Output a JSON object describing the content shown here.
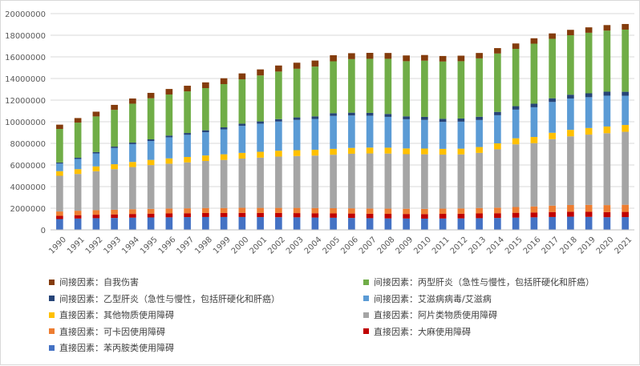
{
  "chart_data": {
    "type": "bar",
    "stacked": true,
    "title": "",
    "xlabel": "",
    "ylabel": "",
    "ylim": [
      0,
      20000000
    ],
    "y_ticks": [
      "0",
      "2000000",
      "4000000",
      "6000000",
      "8000000",
      "10000000",
      "12000000",
      "14000000",
      "16000000",
      "18000000",
      "20000000"
    ],
    "grid": true,
    "legend_position": "bottom",
    "categories": [
      "1990",
      "1991",
      "1992",
      "1993",
      "1994",
      "1995",
      "1996",
      "1997",
      "1998",
      "1999",
      "2000",
      "2001",
      "2002",
      "2003",
      "2004",
      "2005",
      "2006",
      "2007",
      "2008",
      "2009",
      "2010",
      "2011",
      "2012",
      "2013",
      "2014",
      "2015",
      "2016",
      "2017",
      "2018",
      "2019",
      "2020",
      "2021"
    ],
    "series": [
      {
        "name": "直接因素：苯丙胺类使用障碍",
        "color": "#4472c4",
        "values": [
          1000000,
          1050000,
          1080000,
          1100000,
          1130000,
          1150000,
          1160000,
          1180000,
          1190000,
          1190000,
          1190000,
          1180000,
          1170000,
          1160000,
          1140000,
          1120000,
          1100000,
          1080000,
          1060000,
          1050000,
          1040000,
          1050000,
          1060000,
          1080000,
          1100000,
          1130000,
          1160000,
          1190000,
          1220000,
          1200000,
          1170000,
          1180000
        ]
      },
      {
        "name": "直接因素：大麻使用障碍",
        "color": "#c00000",
        "values": [
          300000,
          310000,
          320000,
          330000,
          340000,
          350000,
          360000,
          360000,
          370000,
          370000,
          380000,
          380000,
          390000,
          390000,
          400000,
          400000,
          410000,
          410000,
          420000,
          420000,
          420000,
          430000,
          430000,
          440000,
          440000,
          450000,
          450000,
          460000,
          460000,
          470000,
          470000,
          480000
        ]
      },
      {
        "name": "直接因素：可卡因使用障碍",
        "color": "#ed7d31",
        "values": [
          400000,
          410000,
          420000,
          430000,
          440000,
          440000,
          450000,
          450000,
          460000,
          460000,
          470000,
          470000,
          470000,
          480000,
          480000,
          480000,
          480000,
          480000,
          480000,
          480000,
          480000,
          480000,
          490000,
          500000,
          510000,
          530000,
          560000,
          590000,
          620000,
          640000,
          650000,
          660000
        ]
      },
      {
        "name": "直接因素：阿片类物质使用障碍",
        "color": "#a5a5a5",
        "values": [
          3300000,
          3400000,
          3600000,
          3750000,
          3900000,
          4050000,
          4150000,
          4250000,
          4350000,
          4450000,
          4550000,
          4650000,
          4750000,
          4800000,
          4850000,
          4950000,
          5050000,
          5100000,
          5100000,
          5050000,
          5050000,
          5000000,
          5000000,
          5100000,
          5400000,
          5800000,
          5850000,
          6150000,
          6350000,
          6500000,
          6650000,
          6750000
        ]
      },
      {
        "name": "直接因素：其他物质使用障碍",
        "color": "#ffc000",
        "values": [
          430000,
          440000,
          450000,
          460000,
          470000,
          480000,
          490000,
          500000,
          510000,
          520000,
          530000,
          540000,
          540000,
          540000,
          540000,
          540000,
          540000,
          540000,
          540000,
          530000,
          530000,
          530000,
          530000,
          540000,
          550000,
          560000,
          570000,
          590000,
          600000,
          610000,
          620000,
          630000
        ]
      },
      {
        "name": "间接因素：艾滋病病毒/艾滋病",
        "color": "#5b9bd5",
        "values": [
          700000,
          950000,
          1200000,
          1500000,
          1650000,
          1750000,
          1950000,
          2050000,
          2150000,
          2300000,
          2500000,
          2600000,
          2700000,
          2800000,
          2850000,
          3050000,
          3000000,
          2950000,
          2850000,
          2700000,
          2650000,
          2500000,
          2500000,
          2500000,
          2600000,
          2650000,
          2750000,
          2850000,
          2900000,
          2850000,
          2850000,
          2700000
        ]
      },
      {
        "name": "间接因素：乙型肝炎（急性与慢性，包括肝硬化和肝癌）",
        "color": "#264478",
        "values": [
          100000,
          110000,
          120000,
          130000,
          140000,
          150000,
          160000,
          170000,
          180000,
          190000,
          200000,
          210000,
          220000,
          230000,
          240000,
          250000,
          260000,
          260000,
          270000,
          270000,
          280000,
          280000,
          290000,
          300000,
          310000,
          320000,
          330000,
          340000,
          350000,
          360000,
          370000,
          370000
        ]
      },
      {
        "name": "间接因素：丙型肝炎（急性与慢性，包括肝硬化和肝癌）",
        "color": "#70ad47",
        "values": [
          3100000,
          3250000,
          3300000,
          3400000,
          3600000,
          3800000,
          3800000,
          3850000,
          3900000,
          4000000,
          4100000,
          4250000,
          4400000,
          4500000,
          4600000,
          4800000,
          4950000,
          5000000,
          5100000,
          5100000,
          5200000,
          5300000,
          5300000,
          5400000,
          5400000,
          5300000,
          5550000,
          5500000,
          5500000,
          5600000,
          5650000,
          5750000
        ]
      },
      {
        "name": "间接因素：自我伤害",
        "color": "#843c0c",
        "values": [
          400000,
          420000,
          440000,
          460000,
          480000,
          500000,
          510000,
          520000,
          530000,
          540000,
          550000,
          560000,
          560000,
          560000,
          560000,
          560000,
          550000,
          550000,
          540000,
          530000,
          520000,
          510000,
          510000,
          500000,
          500000,
          500000,
          500000,
          500000,
          500000,
          500000,
          510000,
          520000
        ]
      }
    ]
  }
}
